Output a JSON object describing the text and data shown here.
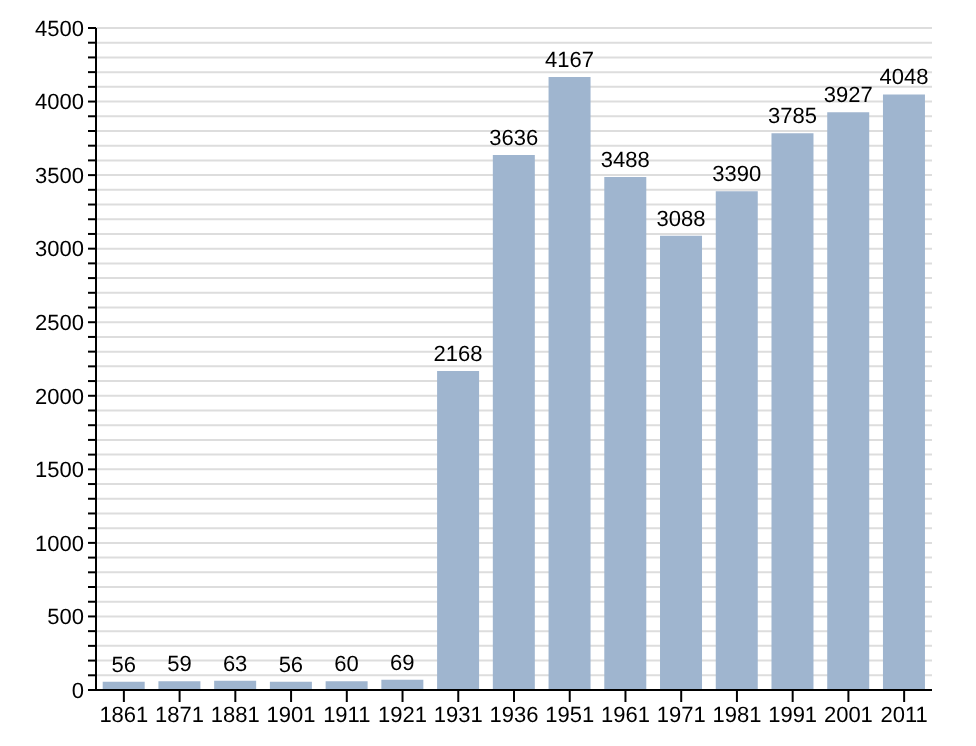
{
  "chart_data": {
    "type": "bar",
    "categories": [
      "1861",
      "1871",
      "1881",
      "1901",
      "1911",
      "1921",
      "1931",
      "1936",
      "1951",
      "1961",
      "1971",
      "1981",
      "1991",
      "2001",
      "2011"
    ],
    "values": [
      56,
      59,
      63,
      56,
      60,
      69,
      2168,
      3636,
      4167,
      3488,
      3088,
      3390,
      3785,
      3927,
      4048
    ],
    "color": "#9fb5cf",
    "data_labels": true,
    "grid": "y",
    "ylim": [
      0,
      4500
    ],
    "yticks": [
      0,
      {
        "value": 100,
        "label": null
      },
      {
        "value": 200,
        "label": null
      },
      {
        "value": 300,
        "label": null
      },
      {
        "value": 400,
        "label": null
      },
      500,
      {
        "value": 600,
        "label": null
      },
      {
        "value": 700,
        "label": null
      },
      {
        "value": 800,
        "label": null
      },
      {
        "value": 900,
        "label": null
      },
      1000,
      {
        "value": 1100,
        "label": null
      },
      {
        "value": 1200,
        "label": null
      },
      {
        "value": 1300,
        "label": null
      },
      {
        "value": 1400,
        "label": null
      },
      1500,
      {
        "value": 1600,
        "label": null
      },
      {
        "value": 1700,
        "label": null
      },
      {
        "value": 1800,
        "label": null
      },
      {
        "value": 1900,
        "label": null
      },
      2000,
      {
        "value": 2100,
        "label": null
      },
      {
        "value": 2200,
        "label": null
      },
      {
        "value": 2300,
        "label": null
      },
      {
        "value": 2400,
        "label": null
      },
      2500,
      {
        "value": 2600,
        "label": null
      },
      {
        "value": 2700,
        "label": null
      },
      {
        "value": 2800,
        "label": null
      },
      {
        "value": 2900,
        "label": null
      },
      3000,
      {
        "value": 3100,
        "label": null
      },
      {
        "value": 3200,
        "label": null
      },
      {
        "value": 3300,
        "label": null
      },
      {
        "value": 3400,
        "label": null
      },
      3500,
      {
        "value": 3600,
        "label": null
      },
      {
        "value": 3700,
        "label": null
      },
      {
        "value": 3800,
        "label": null
      },
      {
        "value": 3900,
        "label": null
      },
      4000,
      {
        "value": 4100,
        "label": null
      },
      {
        "value": 4200,
        "label": null
      },
      {
        "value": 4300,
        "label": null
      },
      {
        "value": 4400,
        "label": null
      },
      4500
    ]
  }
}
